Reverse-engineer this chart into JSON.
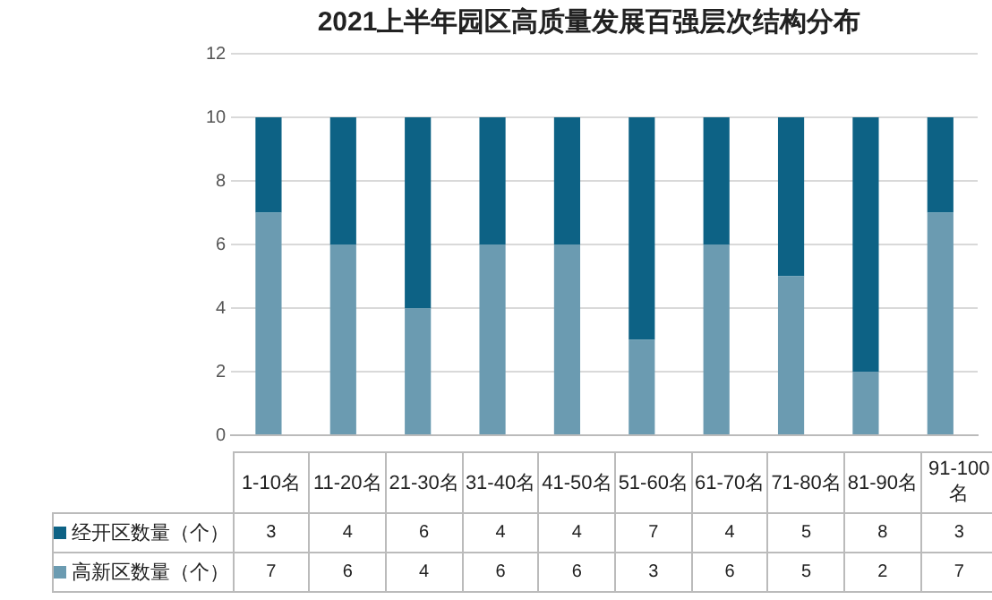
{
  "chart_data": {
    "type": "bar",
    "title": "2021上半年园区高质量发展百强层次结构分布",
    "categories": [
      "1-10名",
      "11-20名",
      "21-30名",
      "31-40名",
      "41-50名",
      "51-60名",
      "61-70名",
      "71-80名",
      "81-90名",
      "91-100名"
    ],
    "series": [
      {
        "name": "高新区数量（个）",
        "color": "#6b9bb1",
        "values": [
          7,
          6,
          4,
          6,
          6,
          3,
          6,
          5,
          2,
          7
        ]
      },
      {
        "name": "经开区数量（个）",
        "color": "#0d6285",
        "values": [
          3,
          4,
          6,
          4,
          4,
          7,
          4,
          5,
          8,
          3
        ]
      }
    ],
    "stacked": true,
    "ylim": [
      0,
      12
    ],
    "yticks": [
      0,
      2,
      4,
      6,
      8,
      10,
      12
    ],
    "grid": "y",
    "legend": "bottom",
    "data_labels": true
  }
}
